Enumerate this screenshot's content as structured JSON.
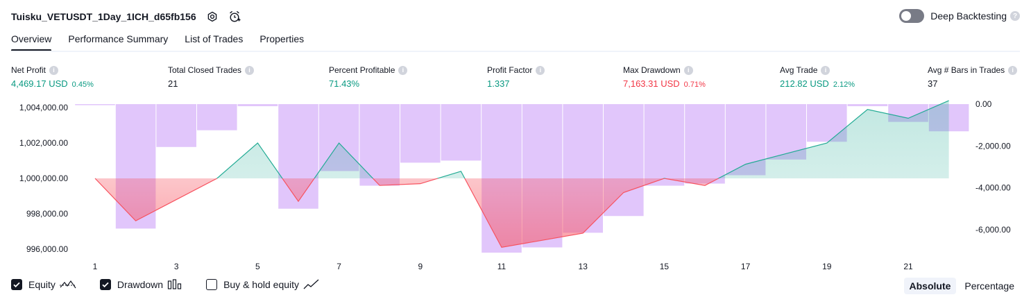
{
  "header": {
    "title": "Tuisku_VETUSDT_1Day_1ICH_d65fb156",
    "icons": [
      "gear-icon",
      "alarm-add-icon"
    ]
  },
  "deep_backtesting": {
    "label": "Deep Backtesting",
    "enabled": false,
    "help_icon": "question-icon"
  },
  "tabs": [
    {
      "label": "Overview",
      "active": true
    },
    {
      "label": "Performance Summary",
      "active": false
    },
    {
      "label": "List of Trades",
      "active": false
    },
    {
      "label": "Properties",
      "active": false
    }
  ],
  "metrics": [
    {
      "label": "Net Profit",
      "value": "4,469.17 USD",
      "pct": "0.45%",
      "tone": "green"
    },
    {
      "label": "Total Closed Trades",
      "value": "21",
      "pct": "",
      "tone": "dark"
    },
    {
      "label": "Percent Profitable",
      "value": "71.43%",
      "pct": "",
      "tone": "green"
    },
    {
      "label": "Profit Factor",
      "value": "1.337",
      "pct": "",
      "tone": "green"
    },
    {
      "label": "Max Drawdown",
      "value": "7,163.31 USD",
      "pct": "0.71%",
      "tone": "red"
    },
    {
      "label": "Avg Trade",
      "value": "212.82 USD",
      "pct": "2.12%",
      "tone": "green"
    },
    {
      "label": "Avg # Bars in Trades",
      "value": "37",
      "pct": "",
      "tone": "dark"
    }
  ],
  "chart_data": {
    "type": "line",
    "x": [
      1,
      2,
      3,
      4,
      5,
      6,
      7,
      8,
      9,
      10,
      11,
      12,
      13,
      14,
      15,
      16,
      17,
      18,
      19,
      20,
      21,
      22
    ],
    "x_tick_labels": [
      "1",
      "3",
      "5",
      "7",
      "9",
      "11",
      "13",
      "15",
      "17",
      "19",
      "21"
    ],
    "left_axis": {
      "ylim": [
        995800,
        1004200
      ],
      "tick_labels": [
        "1,004,000.00",
        "1,002,000.00",
        "1,000,000.00",
        "998,000.00",
        "996,000.00"
      ],
      "ticks": [
        1004000,
        1002000,
        1000000,
        998000,
        996000
      ]
    },
    "right_axis": {
      "ylim": [
        -7100,
        0
      ],
      "tick_labels": [
        "0.00",
        "-2,000.00",
        "-4,000.00",
        "-6,000.00"
      ],
      "ticks": [
        0,
        -2000,
        -4000,
        -6000
      ]
    },
    "baseline": 1000000,
    "series": [
      {
        "key": "equity",
        "values": [
          1000000,
          997600,
          998800,
          1000000,
          1002000,
          998700,
          1002000,
          999600,
          999700,
          1000400,
          996100,
          996500,
          996900,
          999200,
          1000000,
          999600,
          1000800,
          1001400,
          1002000,
          1003900,
          1003400,
          1004400
        ]
      },
      {
        "key": "drawdown",
        "values": [
          -50,
          -5950,
          -2050,
          -1250,
          -100,
          -5000,
          -3200,
          -3900,
          -2800,
          -2700,
          -7100,
          -6850,
          -6150,
          -5350,
          -3900,
          -3800,
          -3400,
          -2650,
          -1800,
          -100,
          -850,
          -1300
        ]
      }
    ],
    "colors": {
      "equity_up": "#22ab94",
      "equity_down": "#f7525f",
      "drawdown_bar": "#e1c6fb",
      "drawdown_fill": "#d6b2f9",
      "fill_up": "#d2efe8",
      "fill_down": "#f9cdd4"
    }
  },
  "legend": [
    {
      "label": "Equity",
      "checked": true,
      "icon": "equity-line-icon"
    },
    {
      "label": "Drawdown",
      "checked": true,
      "icon": "drawdown-bars-icon"
    },
    {
      "label": "Buy & hold equity",
      "checked": false,
      "icon": "buy-hold-line-icon"
    }
  ],
  "modes": [
    {
      "label": "Absolute",
      "active": true
    },
    {
      "label": "Percentage",
      "active": false
    }
  ]
}
